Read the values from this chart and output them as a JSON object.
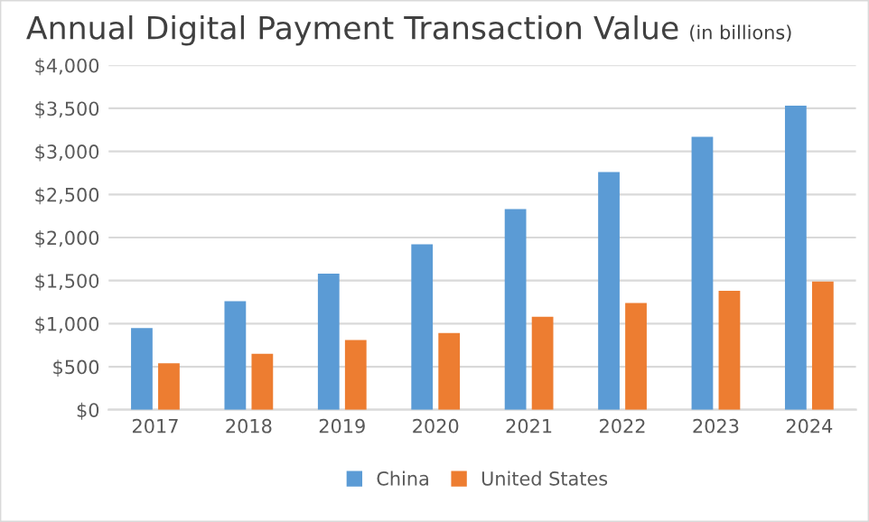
{
  "chart_data": {
    "type": "bar",
    "title": "Annual Digital Payment Transaction Value",
    "subtitle": "(in billions)",
    "categories": [
      "2017",
      "2018",
      "2019",
      "2020",
      "2021",
      "2022",
      "2023",
      "2024"
    ],
    "series": [
      {
        "name": "China",
        "color": "#5b9bd5",
        "values": [
          950,
          1260,
          1580,
          1920,
          2330,
          2760,
          3170,
          3530
        ]
      },
      {
        "name": "United States",
        "color": "#ed7d31",
        "values": [
          540,
          650,
          810,
          890,
          1080,
          1240,
          1380,
          1490
        ]
      }
    ],
    "ylim": [
      0,
      4000
    ],
    "yticks": [
      {
        "value": 0,
        "label": "$0"
      },
      {
        "value": 500,
        "label": "$500"
      },
      {
        "value": 1000,
        "label": "$1,000"
      },
      {
        "value": 1500,
        "label": "$1,500"
      },
      {
        "value": 2000,
        "label": "$2,000"
      },
      {
        "value": 2500,
        "label": "$2,500"
      },
      {
        "value": 3000,
        "label": "$3,000"
      },
      {
        "value": 3500,
        "label": "$3,500"
      },
      {
        "value": 4000,
        "label": "$4,000"
      }
    ],
    "grid": "y",
    "legend": "bottom"
  }
}
